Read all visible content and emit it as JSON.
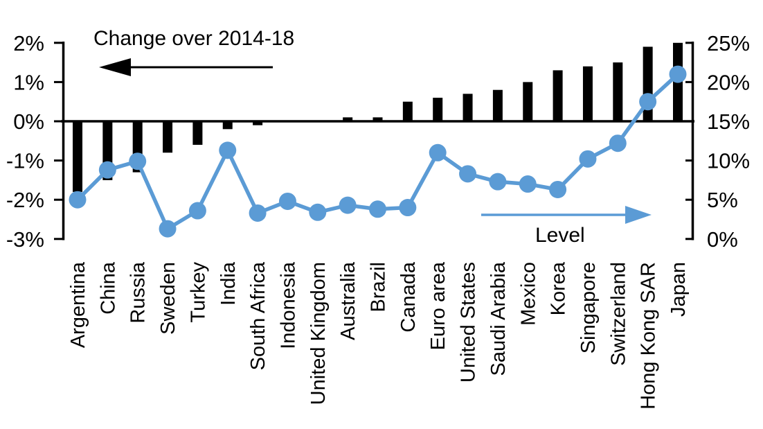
{
  "chart_data": {
    "type": "combo-bar-line",
    "categories": [
      "Argentina",
      "China",
      "Russia",
      "Sweden",
      "Turkey",
      "India",
      "South Africa",
      "Indonesia",
      "United Kingdom",
      "Australia",
      "Brazil",
      "Canada",
      "Euro area",
      "United States",
      "Saudi Arabia",
      "Mexico",
      "Korea",
      "Singapore",
      "Switzerland",
      "Hong Kong SAR",
      "Japan"
    ],
    "series": [
      {
        "name": "Change over 2014-18",
        "type": "bar",
        "axis": "left",
        "color": "#000000",
        "values": [
          -1.8,
          -1.5,
          -1.3,
          -0.8,
          -0.6,
          -0.2,
          -0.1,
          0.0,
          0.0,
          0.1,
          0.1,
          0.5,
          0.6,
          0.7,
          0.8,
          1.0,
          1.3,
          1.4,
          1.5,
          1.9,
          2.0
        ]
      },
      {
        "name": "Level",
        "type": "line",
        "axis": "right",
        "color": "#5B9BD5",
        "values": [
          5.0,
          8.8,
          9.9,
          1.3,
          3.6,
          11.3,
          3.3,
          4.8,
          3.4,
          4.3,
          3.8,
          4.0,
          11.0,
          8.3,
          7.3,
          7.0,
          6.3,
          10.2,
          12.2,
          17.5,
          21.0
        ]
      }
    ],
    "left_axis": {
      "min": -3,
      "max": 2,
      "tick_values": [
        2,
        1,
        0,
        -1,
        -2,
        -3
      ],
      "tick_labels": [
        "2%",
        "1%",
        "0%",
        "-1%",
        "-2%",
        "-3%"
      ]
    },
    "right_axis": {
      "min": 0,
      "max": 25,
      "tick_values": [
        25,
        20,
        15,
        10,
        5,
        0
      ],
      "tick_labels": [
        "25%",
        "20%",
        "15%",
        "10%",
        "5%",
        "0%"
      ]
    },
    "labels": {
      "bar_series": "Change over 2014-18",
      "line_series": "Level"
    },
    "annotations": {
      "bar_arrow_direction": "left",
      "bar_arrow_color": "#000000",
      "line_arrow_direction": "right",
      "line_arrow_color": "#5B9BD5"
    },
    "layout_hints": {
      "grid": false,
      "zero_line": true,
      "x_labels_rotated_90": true
    }
  }
}
